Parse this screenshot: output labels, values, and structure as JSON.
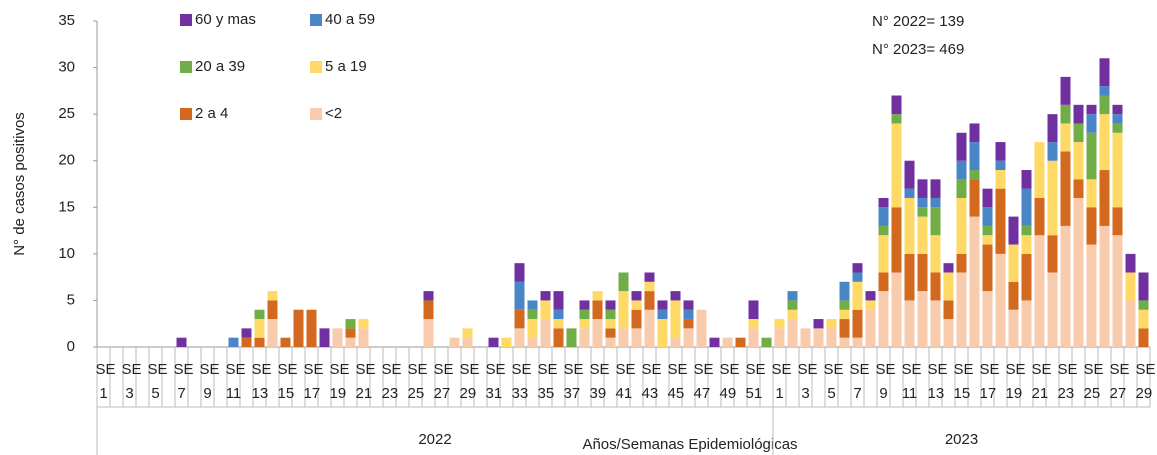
{
  "chart_data": {
    "type": "stacked_bar",
    "y_label": "N° de casos positivos",
    "x_label": "Años/Semanas Epidemiológicas",
    "groups": [
      "2022",
      "2023"
    ],
    "annotations": [
      "N° 2022= 139",
      "N° 2023= 469"
    ],
    "ylim": [
      0,
      35
    ],
    "yticks": [
      0,
      5,
      10,
      15,
      20,
      25,
      30,
      35
    ],
    "grid": false,
    "categories": [
      "SE 1",
      null,
      "SE 3",
      null,
      "SE 5",
      null,
      "SE 7",
      null,
      "SE 9",
      null,
      "SE 11",
      null,
      "SE 13",
      null,
      "SE 15",
      null,
      "SE 17",
      null,
      "SE 19",
      null,
      "SE 21",
      null,
      "SE 23",
      null,
      "SE 25",
      null,
      "SE 27",
      null,
      "SE 29",
      null,
      "SE 31",
      null,
      "SE 33",
      null,
      "SE 35",
      null,
      "SE 37",
      null,
      "SE 39",
      null,
      "SE 41",
      null,
      "SE 43",
      null,
      "SE 45",
      null,
      "SE 47",
      null,
      "SE 49",
      null,
      "SE 51",
      null,
      "SE 1",
      null,
      "SE 3",
      null,
      "SE 5",
      null,
      "SE 7",
      null,
      "SE 9",
      null,
      "SE 11",
      null,
      "SE 13",
      null,
      "SE 15",
      null,
      "SE 17",
      null,
      "SE 19",
      null,
      "SE 21",
      null,
      "SE 23",
      null,
      "SE 25",
      null,
      "SE 27",
      null,
      "SE 29"
    ],
    "series": [
      {
        "name": "<2",
        "color": "#F8CBAD",
        "values": [
          0,
          0,
          0,
          0,
          0,
          0,
          0,
          0,
          0,
          0,
          0,
          0,
          0,
          3,
          0,
          0,
          0,
          0,
          2,
          1,
          2,
          0,
          0,
          0,
          0,
          3,
          0,
          1,
          1,
          0,
          0,
          0,
          2,
          1,
          3,
          0,
          0,
          2,
          3,
          1,
          2,
          2,
          4,
          0,
          1,
          2,
          4,
          0,
          1,
          0,
          2,
          0,
          2,
          3,
          2,
          2,
          2,
          1,
          1,
          4,
          6,
          8,
          5,
          6,
          5,
          3,
          8,
          14,
          6,
          10,
          4,
          5,
          12,
          8,
          13,
          16,
          11,
          13,
          12,
          5,
          0
        ]
      },
      {
        "name": "2 a 4",
        "color": "#D2691E",
        "values": [
          0,
          0,
          0,
          0,
          0,
          0,
          0,
          0,
          0,
          0,
          0,
          1,
          1,
          2,
          1,
          4,
          4,
          0,
          0,
          1,
          0,
          0,
          0,
          0,
          0,
          2,
          0,
          0,
          0,
          0,
          0,
          0,
          2,
          0,
          0,
          2,
          0,
          0,
          2,
          1,
          0,
          2,
          2,
          0,
          0,
          1,
          0,
          0,
          0,
          1,
          0,
          0,
          0,
          0,
          0,
          0,
          0,
          2,
          3,
          0,
          2,
          7,
          5,
          4,
          3,
          2,
          2,
          4,
          5,
          7,
          3,
          5,
          4,
          4,
          8,
          2,
          4,
          6,
          3,
          0,
          2
        ]
      },
      {
        "name": "5 a 19",
        "color": "#FFD966",
        "values": [
          0,
          0,
          0,
          0,
          0,
          0,
          0,
          0,
          0,
          0,
          0,
          0,
          2,
          1,
          0,
          0,
          0,
          0,
          0,
          0,
          1,
          0,
          0,
          0,
          0,
          0,
          0,
          0,
          1,
          0,
          0,
          1,
          0,
          2,
          2,
          1,
          0,
          1,
          1,
          1,
          4,
          1,
          1,
          3,
          4,
          0,
          0,
          0,
          0,
          0,
          1,
          0,
          1,
          1,
          0,
          0,
          1,
          1,
          3,
          1,
          4,
          9,
          6,
          4,
          4,
          3,
          6,
          0,
          1,
          2,
          4,
          2,
          6,
          8,
          3,
          4,
          3,
          6,
          8,
          3,
          2
        ]
      },
      {
        "name": "20 a 39",
        "color": "#70AD47",
        "values": [
          0,
          0,
          0,
          0,
          0,
          0,
          0,
          0,
          0,
          0,
          0,
          0,
          1,
          0,
          0,
          0,
          0,
          0,
          0,
          1,
          0,
          0,
          0,
          0,
          0,
          0,
          0,
          0,
          0,
          0,
          0,
          0,
          0,
          1,
          0,
          0,
          2,
          1,
          0,
          1,
          2,
          0,
          0,
          0,
          0,
          0,
          0,
          0,
          0,
          0,
          0,
          1,
          0,
          1,
          0,
          0,
          0,
          1,
          0,
          0,
          1,
          1,
          0,
          1,
          3,
          0,
          2,
          1,
          1,
          0,
          0,
          1,
          0,
          0,
          2,
          2,
          5,
          2,
          1,
          0,
          1
        ]
      },
      {
        "name": "40 a 59",
        "color": "#4A86C5",
        "values": [
          0,
          0,
          0,
          0,
          0,
          0,
          0,
          0,
          0,
          0,
          1,
          0,
          0,
          0,
          0,
          0,
          0,
          0,
          0,
          0,
          0,
          0,
          0,
          0,
          0,
          0,
          0,
          0,
          0,
          0,
          0,
          0,
          3,
          1,
          0,
          1,
          0,
          0,
          0,
          0,
          0,
          0,
          0,
          1,
          0,
          1,
          0,
          0,
          0,
          0,
          0,
          0,
          0,
          1,
          0,
          0,
          0,
          2,
          1,
          0,
          2,
          0,
          1,
          1,
          1,
          0,
          2,
          3,
          2,
          1,
          0,
          4,
          0,
          2,
          0,
          0,
          2,
          1,
          1,
          0,
          0
        ]
      },
      {
        "name": "60 y mas",
        "color": "#7030A0",
        "values": [
          0,
          0,
          0,
          0,
          0,
          0,
          1,
          0,
          0,
          0,
          0,
          1,
          0,
          0,
          0,
          0,
          0,
          2,
          0,
          0,
          0,
          0,
          0,
          0,
          0,
          1,
          0,
          0,
          0,
          0,
          1,
          0,
          2,
          0,
          1,
          2,
          0,
          1,
          0,
          1,
          0,
          1,
          1,
          1,
          1,
          1,
          0,
          1,
          0,
          0,
          2,
          0,
          0,
          0,
          0,
          1,
          0,
          0,
          1,
          1,
          1,
          2,
          3,
          2,
          2,
          1,
          3,
          2,
          2,
          2,
          3,
          2,
          0,
          3,
          3,
          2,
          1,
          3,
          1,
          2,
          3
        ]
      }
    ]
  }
}
